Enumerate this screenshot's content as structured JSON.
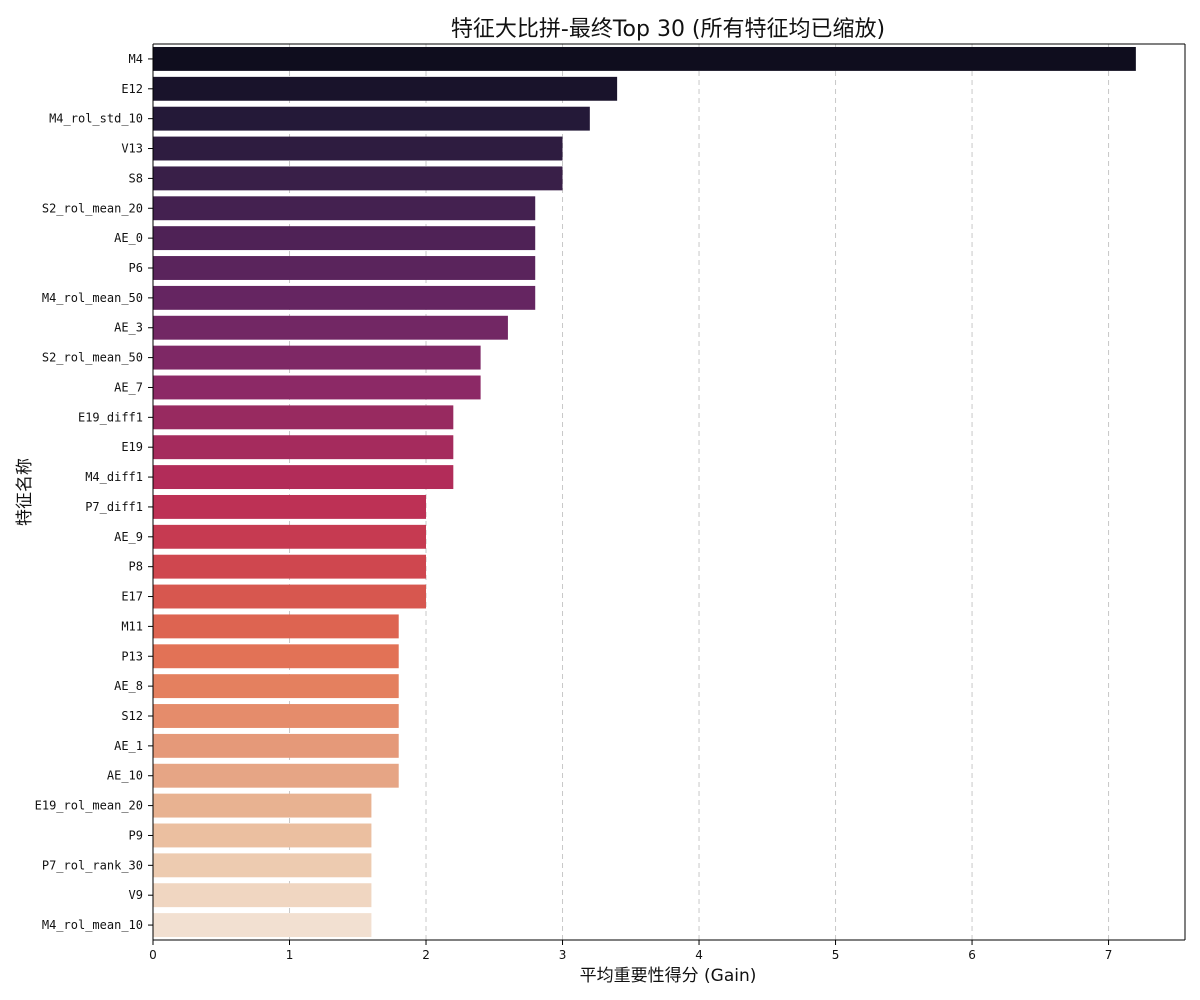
{
  "chart_data": {
    "type": "bar",
    "orientation": "horizontal",
    "title": "特征大比拼-最终Top 30 (所有特征均已缩放)",
    "xlabel": "平均重要性得分 (Gain)",
    "ylabel": "特征名称",
    "xlim": [
      0,
      7.56
    ],
    "xticks": [
      0,
      1,
      2,
      3,
      4,
      5,
      6,
      7
    ],
    "grid": "x-dashed",
    "palette": "rocket",
    "categories": [
      "M4",
      "E12",
      "M4_rol_std_10",
      "V13",
      "S8",
      "S2_rol_mean_20",
      "AE_0",
      "P6",
      "M4_rol_mean_50",
      "AE_3",
      "S2_rol_mean_50",
      "AE_7",
      "E19_diff1",
      "E19",
      "M4_diff1",
      "P7_diff1",
      "AE_9",
      "P8",
      "E17",
      "M11",
      "P13",
      "AE_8",
      "S12",
      "AE_1",
      "AE_10",
      "E19_rol_mean_20",
      "P9",
      "P7_rol_rank_30",
      "V9",
      "M4_rol_mean_10"
    ],
    "values": [
      7.2,
      3.4,
      3.2,
      3.0,
      3.0,
      2.8,
      2.8,
      2.8,
      2.8,
      2.6,
      2.4,
      2.4,
      2.2,
      2.2,
      2.2,
      2.0,
      2.0,
      2.0,
      2.0,
      1.8,
      1.8,
      1.8,
      1.8,
      1.8,
      1.8,
      1.6,
      1.6,
      1.6,
      1.6,
      1.6
    ],
    "colors": [
      "#0f0d1e",
      "#19132b",
      "#241938",
      "#2e1c40",
      "#391f48",
      "#442150",
      "#4f2256",
      "#5a245c",
      "#652561",
      "#722764",
      "#7e2865",
      "#8c2966",
      "#982a60",
      "#a52b5d",
      "#b22c59",
      "#bd3155",
      "#c63a51",
      "#cf474f",
      "#d7574f",
      "#dd6451",
      "#e27256",
      "#e4805f",
      "#e58c6b",
      "#e59979",
      "#e6a585",
      "#e8b291",
      "#ebbfa0",
      "#edcbb0",
      "#f0d6c1",
      "#f2e0d1"
    ]
  }
}
